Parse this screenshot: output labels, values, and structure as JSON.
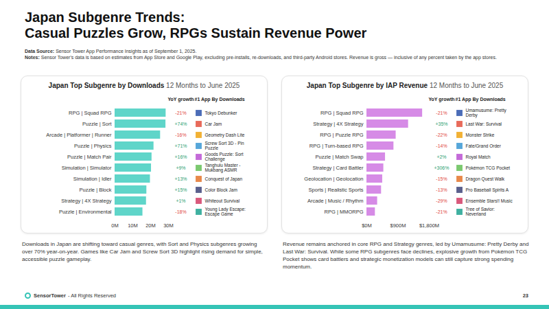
{
  "page": {
    "title": [
      "Japan Subgenre Trends:",
      "Casual Puzzles Grow, RPGs Sustain Revenue Power"
    ],
    "data_source": {
      "label": "Data Source:",
      "text": "Sensor Tower App Performance Insights as of September 1, 2025."
    },
    "notes": {
      "label": "Notes:",
      "text": "Sensor Tower's data is based on estimates from App Store and Google Play, excluding pre-installs, re-downloads, and third-party Android stores. Revenue is gross — inclusive of any percent taken by the app stores."
    },
    "footer": {
      "brand": "SensorTower",
      "text": "- All Rights Reserved",
      "page_number": 23
    }
  },
  "chart_data": [
    {
      "type": "bar",
      "orientation": "horizontal",
      "title": "Japan Top Subgenre by Downloads",
      "subtitle": "12 Months to June 2025",
      "categories": [
        "RPG | Squad RPG",
        "Puzzle | Sort",
        "Arcade | Platformer | Runner",
        "Puzzle | Physics",
        "Puzzle | Match Pair",
        "Simulation | Simulator",
        "Simulation | Idler",
        "Puzzle | Block",
        "Strategy | 4X Strategy",
        "Puzzle | Environmental"
      ],
      "values": [
        28.6,
        28.5,
        25.5,
        21.8,
        20.7,
        20.4,
        19.8,
        17.8,
        17.6,
        15.6
      ],
      "color": "#5fd5c9",
      "xlim": [
        0,
        30
      ],
      "xticks": [
        {
          "value": 0,
          "label": "0M"
        },
        {
          "value": 10,
          "label": "10M"
        },
        {
          "value": 20,
          "label": "20M"
        },
        {
          "value": 30,
          "label": "30M"
        }
      ],
      "grid": false,
      "yoy_growth": {
        "title": "YoY growth",
        "values": [
          -21,
          74,
          -16,
          71,
          16,
          9,
          13,
          15,
          1,
          -18
        ],
        "value_labels": [
          "-21%",
          "+74%",
          "-16%",
          "+71%",
          "+16%",
          "+9%",
          "+13%",
          "+15%",
          "+1%",
          "-18%"
        ]
      },
      "top_apps": {
        "title": "#1 App By Downloads",
        "names": [
          "Tokyo Debunker",
          "Car Jam",
          "Geometry Dash Lite",
          "Screw Sort 3D - Pin Puzzle",
          "Goods Puzzle: Sort Challenge",
          "Tanghulu Master - Mukbang ASMR",
          "Conquest of Japan",
          "Color Block Jam",
          "Whiteout Survival",
          "Young Lady Escape: Escape Game"
        ]
      },
      "caption": "Downloads in Japan are shifting toward casual genres, with Sort and Physics subgenres growing over 70% year-on-year. Games like Car Jam and Screw Sort 3D highlight rising demand for simple, accessible puzzle gameplay."
    },
    {
      "type": "bar",
      "orientation": "horizontal",
      "title": "Japan Top Subgenre by IAP Revenue",
      "subtitle": "12 Months to June 2025",
      "categories": [
        "RPG | Squad RPG",
        "Strategy | 4X Strategy",
        "RPG | Puzzle RPG",
        "RPG | Turn-based RPG",
        "Puzzle | Match Swap",
        "Strategy | Card Battler",
        "Geolocation | Geolocation",
        "Sports | Realistic Sports",
        "Arcade | Music / Rhythm",
        "RPG | MMORPG"
      ],
      "values": [
        1605,
        1200,
        842,
        778,
        535,
        486,
        454,
        421,
        308,
        243
      ],
      "color": "#d68be6",
      "xlim": [
        0,
        1800
      ],
      "xticks": [
        {
          "value": 0,
          "label": "$0M"
        },
        {
          "value": 900,
          "label": "$900M"
        },
        {
          "value": 1800,
          "label": "$1,800M"
        }
      ],
      "grid": false,
      "yoy_growth": {
        "title": "YoY growth",
        "values": [
          -21,
          35,
          -22,
          -14,
          2,
          306,
          -15,
          -13,
          -29,
          -21
        ],
        "value_labels": [
          "-21%",
          "+35%",
          "-22%",
          "-14%",
          "+2%",
          "+306%",
          "-15%",
          "-13%",
          "-29%",
          "-21%"
        ]
      },
      "top_apps": {
        "title": "#1 App By Downloads",
        "names": [
          "Umamusume: Pretty Derby",
          "Last War: Survival",
          "Monster Strike",
          "Fate/Grand Order",
          "Royal Match",
          "Pokémon TCG Pocket",
          "Dragon Quest Walk",
          "Pro Baseball Spirits A",
          "Ensemble Stars!! Music",
          "Tree of Savior: Neverland"
        ]
      },
      "caption": "Revenue remains anchored in core RPG and Strategy genres, led by Umamusume: Pretty Derby and Last War: Survival. While some RPG subgenres face declines, explosive growth from Pokémon TCG Pocket shows card battlers and strategic monetization models can still capture strong spending momentum."
    }
  ]
}
